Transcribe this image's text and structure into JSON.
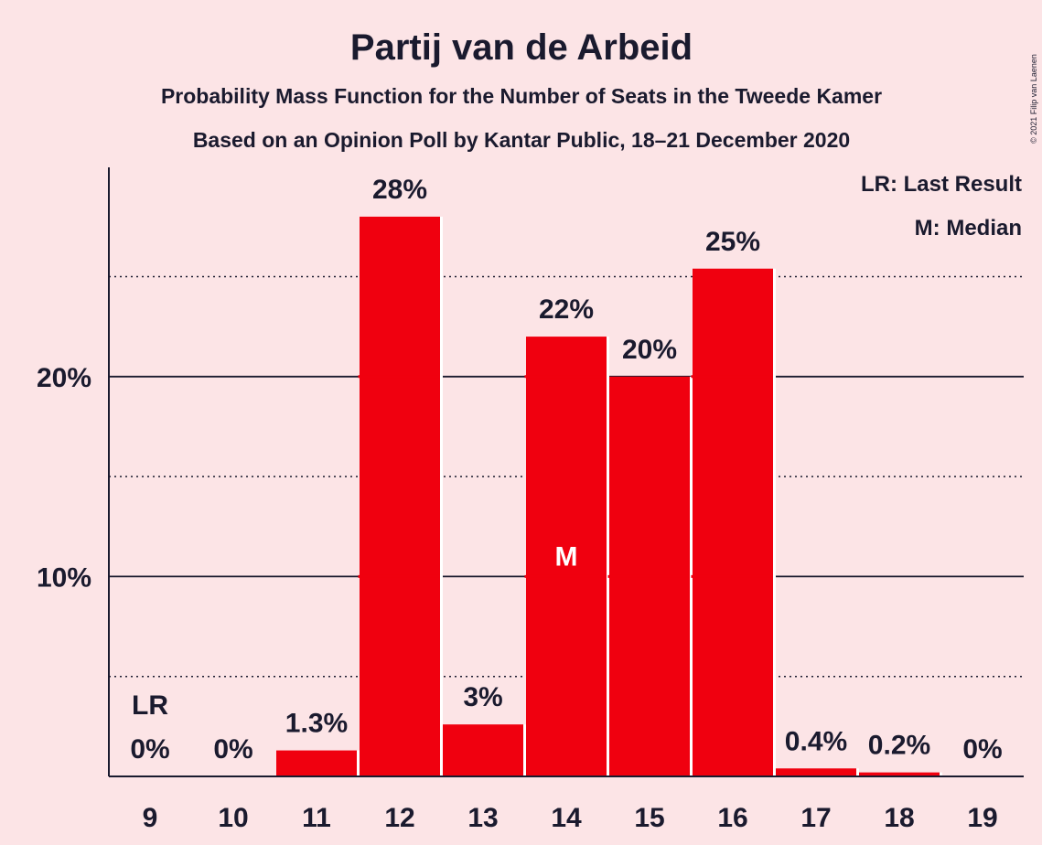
{
  "chart_data": {
    "type": "bar",
    "title": "Partij van de Arbeid",
    "subtitle": "Probability Mass Function for the Number of Seats in the Tweede Kamer",
    "subtitle2": "Based on an Opinion Poll by Kantar Public, 18–21 December 2020",
    "copyright": "© 2021 Filip van Laenen",
    "categories": [
      "9",
      "10",
      "11",
      "12",
      "13",
      "14",
      "15",
      "16",
      "17",
      "18",
      "19"
    ],
    "values": [
      0,
      0,
      1.3,
      28,
      2.6,
      22,
      20,
      25.4,
      0.4,
      0.2,
      0
    ],
    "data_labels": [
      "0%",
      "0%",
      "1.3%",
      "28%",
      "3%",
      "22%",
      "20%",
      "25%",
      "0.4%",
      "0.2%",
      "0%"
    ],
    "ylim": [
      0,
      30
    ],
    "yticks": [
      {
        "value": 10,
        "label": "10%"
      },
      {
        "value": 20,
        "label": "20%"
      }
    ],
    "minor_gridlines": [
      5,
      15,
      25
    ],
    "bar_color": "#f0000f",
    "last_result_category": "9",
    "median_category": "14",
    "last_result_marker": "LR",
    "median_marker": "M",
    "legend": {
      "position": "top-right",
      "items": [
        "LR: Last Result",
        "M: Median"
      ]
    },
    "grid": true
  }
}
